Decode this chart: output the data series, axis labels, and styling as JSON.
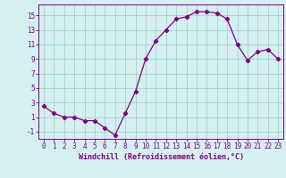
{
  "x": [
    0,
    1,
    2,
    3,
    4,
    5,
    6,
    7,
    8,
    9,
    10,
    11,
    12,
    13,
    14,
    15,
    16,
    17,
    18,
    19,
    20,
    21,
    22,
    23
  ],
  "y": [
    2.5,
    1.5,
    1.0,
    1.0,
    0.5,
    0.5,
    -0.5,
    -1.5,
    1.5,
    4.5,
    9.0,
    11.5,
    13.0,
    14.5,
    14.8,
    15.5,
    15.5,
    15.3,
    14.5,
    11.0,
    8.8,
    10.0,
    10.3,
    9.0
  ],
  "xlim": [
    -0.5,
    23.5
  ],
  "ylim": [
    -2.0,
    16.5
  ],
  "yticks": [
    -1,
    1,
    3,
    5,
    7,
    9,
    11,
    13,
    15
  ],
  "xticks": [
    0,
    1,
    2,
    3,
    4,
    5,
    6,
    7,
    8,
    9,
    10,
    11,
    12,
    13,
    14,
    15,
    16,
    17,
    18,
    19,
    20,
    21,
    22,
    23
  ],
  "xlabel": "Windchill (Refroidissement éolien,°C)",
  "line_color": "#800080",
  "marker": "D",
  "marker_size": 2.2,
  "bg_color": "#d4f0f0",
  "grid_color": "#a0c8c8",
  "tick_fontsize": 5.5,
  "xlabel_fontsize": 6.0
}
